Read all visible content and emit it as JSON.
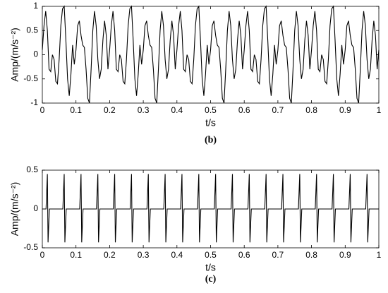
{
  "chart_data": [
    {
      "type": "line",
      "caption": "(b)",
      "xlabel": "t/s",
      "ylabel": "Amp/(m/s⁻²)",
      "color": "#000000",
      "xlim": [
        0,
        1
      ],
      "xticks": [
        0,
        0.1,
        0.2,
        0.3,
        0.4,
        0.5,
        0.6,
        0.7,
        0.8,
        0.9,
        1
      ],
      "ylim": [
        -1,
        1
      ],
      "yticks": [
        -1,
        -0.5,
        0,
        0.5,
        1
      ],
      "x": [
        0,
        0.005,
        0.01,
        0.015,
        0.02,
        0.025,
        0.03,
        0.035,
        0.04,
        0.045,
        0.05,
        0.055,
        0.06,
        0.065,
        0.07,
        0.075,
        0.08,
        0.085,
        0.09,
        0.095,
        0.1,
        0.105,
        0.11,
        0.115,
        0.12,
        0.125,
        0.13,
        0.135,
        0.14,
        0.145,
        0.15,
        0.155,
        0.16,
        0.165,
        0.17,
        0.175,
        0.18,
        0.185,
        0.19,
        0.195,
        0.2,
        0.205,
        0.21,
        0.215,
        0.22,
        0.225,
        0.23,
        0.235,
        0.24,
        0.245,
        0.25,
        0.255,
        0.26,
        0.265,
        0.27,
        0.275,
        0.28,
        0.285,
        0.29,
        0.295,
        0.3,
        0.305,
        0.31,
        0.315,
        0.32,
        0.325,
        0.33,
        0.335,
        0.34,
        0.345,
        0.35,
        0.355,
        0.36,
        0.365,
        0.37,
        0.375,
        0.38,
        0.385,
        0.39,
        0.395,
        0.4,
        0.405,
        0.41,
        0.415,
        0.42,
        0.425,
        0.43,
        0.435,
        0.44,
        0.445,
        0.45,
        0.455,
        0.46,
        0.465,
        0.47,
        0.475,
        0.48,
        0.485,
        0.49,
        0.495,
        0.5,
        0.505,
        0.51,
        0.515,
        0.52,
        0.525,
        0.53,
        0.535,
        0.54,
        0.545,
        0.55,
        0.555,
        0.56,
        0.565,
        0.57,
        0.575,
        0.58,
        0.585,
        0.59,
        0.595,
        0.6,
        0.605,
        0.61,
        0.615,
        0.62,
        0.625,
        0.63,
        0.635,
        0.64,
        0.645,
        0.65,
        0.655,
        0.66,
        0.665,
        0.67,
        0.675,
        0.68,
        0.685,
        0.69,
        0.695,
        0.7,
        0.705,
        0.71,
        0.715,
        0.72,
        0.725,
        0.73,
        0.735,
        0.74,
        0.745,
        0.75,
        0.755,
        0.76,
        0.765,
        0.77,
        0.775,
        0.78,
        0.785,
        0.79,
        0.795,
        0.8,
        0.805,
        0.81,
        0.815,
        0.82,
        0.825,
        0.83,
        0.835,
        0.84,
        0.845,
        0.85,
        0.855,
        0.86,
        0.865,
        0.87,
        0.875,
        0.88,
        0.885,
        0.89,
        0.895,
        0.9,
        0.905,
        0.91,
        0.915,
        0.92,
        0.925,
        0.93,
        0.935,
        0.94,
        0.945,
        0.95,
        0.955,
        0.96,
        0.965,
        0.97,
        0.975,
        0.98,
        0.985,
        0.99,
        0.995,
        1
      ],
      "values": [
        0.1,
        0.6,
        0.9,
        0.5,
        -0.3,
        -0.35,
        0,
        -0.1,
        -0.55,
        -0.6,
        -0.1,
        0.6,
        0.95,
        1,
        0.3,
        -0.5,
        -0.85,
        -0.4,
        0.2,
        -0.2,
        0.1,
        0.6,
        0.7,
        0.4,
        0.2,
        0.15,
        -0.3,
        -0.9,
        -1,
        -0.3,
        0.5,
        0.9,
        0.6,
        -0.1,
        -0.5,
        -0.3,
        0.3,
        0.7,
        0.4,
        -0.3,
        0.1,
        0.6,
        0.9,
        0.5,
        -0.3,
        -0.35,
        0,
        -0.1,
        -0.55,
        -0.6,
        -0.1,
        0.6,
        0.95,
        1,
        0.3,
        -0.5,
        -0.85,
        -0.4,
        0.2,
        -0.2,
        0.1,
        0.6,
        0.7,
        0.4,
        0.2,
        0.15,
        -0.3,
        -0.9,
        -1,
        -0.3,
        0.5,
        0.9,
        0.6,
        -0.1,
        -0.5,
        -0.3,
        0.3,
        0.7,
        0.4,
        -0.3,
        0.1,
        0.6,
        0.9,
        0.5,
        -0.3,
        -0.35,
        0,
        -0.1,
        -0.55,
        -0.6,
        -0.1,
        0.6,
        0.95,
        1,
        0.3,
        -0.5,
        -0.85,
        -0.4,
        0.2,
        -0.2,
        0.1,
        0.6,
        0.7,
        0.4,
        0.2,
        0.15,
        -0.3,
        -0.9,
        -1,
        -0.3,
        0.5,
        0.9,
        0.6,
        -0.1,
        -0.5,
        -0.3,
        0.3,
        0.7,
        0.4,
        -0.3,
        0.1,
        0.6,
        0.9,
        0.5,
        -0.3,
        -0.35,
        0,
        -0.1,
        -0.55,
        -0.6,
        -0.1,
        0.6,
        0.95,
        1,
        0.3,
        -0.5,
        -0.85,
        -0.4,
        0.2,
        -0.2,
        0.1,
        0.6,
        0.7,
        0.4,
        0.2,
        0.15,
        -0.3,
        -0.9,
        -1,
        -0.3,
        0.5,
        0.9,
        0.6,
        -0.1,
        -0.5,
        -0.3,
        0.3,
        0.7,
        0.4,
        -0.3,
        0.1,
        0.6,
        0.9,
        0.5,
        -0.3,
        -0.35,
        0,
        -0.1,
        -0.55,
        -0.6,
        -0.1,
        0.6,
        0.95,
        1,
        0.3,
        -0.5,
        -0.85,
        -0.4,
        0.2,
        -0.2,
        0.1,
        0.6,
        0.7,
        0.4,
        0.2,
        0.15,
        -0.3,
        -0.9,
        -1,
        -0.3,
        0.5,
        0.9,
        0.6,
        -0.1,
        -0.5,
        -0.3,
        0.3,
        0.7,
        0.4,
        -0.3,
        0.1
      ]
    },
    {
      "type": "line",
      "caption": "(c)",
      "xlabel": "t/s",
      "ylabel": "Amp/(m/s⁻²)",
      "color": "#000000",
      "xlim": [
        0,
        1
      ],
      "xticks": [
        0,
        0.1,
        0.2,
        0.3,
        0.4,
        0.5,
        0.6,
        0.7,
        0.8,
        0.9,
        1
      ],
      "ylim": [
        -0.5,
        0.5
      ],
      "yticks": [
        -0.5,
        0,
        0.5
      ],
      "x": [
        0,
        0.011,
        0.015,
        0.017,
        0.021,
        0.061,
        0.065,
        0.067,
        0.071,
        0.111,
        0.115,
        0.117,
        0.121,
        0.161,
        0.165,
        0.167,
        0.171,
        0.211,
        0.215,
        0.217,
        0.221,
        0.261,
        0.265,
        0.267,
        0.271,
        0.311,
        0.315,
        0.317,
        0.321,
        0.361,
        0.365,
        0.367,
        0.371,
        0.411,
        0.415,
        0.417,
        0.421,
        0.461,
        0.465,
        0.467,
        0.471,
        0.511,
        0.515,
        0.517,
        0.521,
        0.561,
        0.565,
        0.567,
        0.571,
        0.611,
        0.615,
        0.617,
        0.621,
        0.661,
        0.665,
        0.667,
        0.671,
        0.711,
        0.715,
        0.717,
        0.721,
        0.761,
        0.765,
        0.767,
        0.771,
        0.811,
        0.815,
        0.817,
        0.821,
        0.861,
        0.865,
        0.867,
        0.871,
        0.911,
        0.915,
        0.917,
        0.921,
        0.961,
        0.965,
        0.967,
        0.971,
        1
      ],
      "values": [
        0,
        0,
        0.45,
        -0.43,
        0,
        0,
        0.45,
        -0.43,
        0,
        0,
        0.45,
        -0.43,
        0,
        0,
        0.45,
        -0.43,
        0,
        0,
        0.45,
        -0.43,
        0,
        0,
        0.45,
        -0.43,
        0,
        0,
        0.45,
        -0.43,
        0,
        0,
        0.45,
        -0.43,
        0,
        0,
        0.45,
        -0.43,
        0,
        0,
        0.45,
        -0.43,
        0,
        0,
        0.45,
        -0.43,
        0,
        0,
        0.45,
        -0.43,
        0,
        0,
        0.45,
        -0.43,
        0,
        0,
        0.45,
        -0.43,
        0,
        0,
        0.45,
        -0.43,
        0,
        0,
        0.45,
        -0.43,
        0,
        0,
        0.45,
        -0.43,
        0,
        0,
        0.45,
        -0.43,
        0,
        0,
        0.45,
        -0.43,
        0,
        0,
        0.45,
        -0.43,
        0,
        0
      ]
    }
  ]
}
